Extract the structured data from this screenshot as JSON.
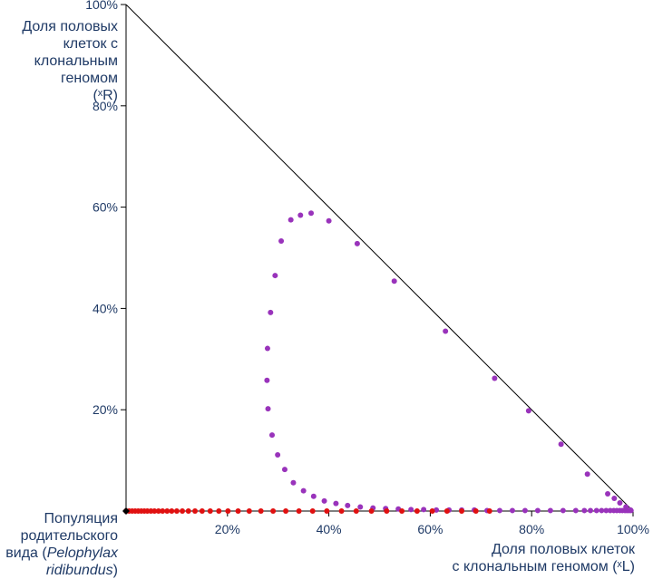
{
  "labels": {
    "y_axis": [
      "Доля половых",
      "клеток  с",
      "клональным",
      "геномом",
      "(ˣR)"
    ],
    "x_axis": [
      "Доля половых клеток",
      "с клональным геномом (ˣL)"
    ],
    "origin": [
      "Популяция",
      "родительского",
      "вида (",
      "Pelophylax",
      "ridibundus",
      ")"
    ]
  },
  "chart_data": {
    "type": "scatter",
    "xlim": [
      0,
      100
    ],
    "ylim": [
      0,
      100
    ],
    "x_ticks": [
      "20%",
      "40%",
      "60%",
      "80%",
      "100%"
    ],
    "y_ticks": [
      "20%",
      "40%",
      "60%",
      "80%",
      "100%"
    ],
    "diagonal_line": [
      [
        0,
        100
      ],
      [
        100,
        0
      ]
    ],
    "grid": false,
    "series": [
      {
        "color": "#9933bb",
        "points": [
          [
            36.5,
            58.8
          ],
          [
            34.4,
            58.4
          ],
          [
            32.5,
            57.5
          ],
          [
            30.6,
            53.3
          ],
          [
            29.4,
            46.5
          ],
          [
            28.5,
            39.2
          ],
          [
            27.9,
            32.1
          ],
          [
            27.8,
            25.8
          ],
          [
            28.0,
            20.2
          ],
          [
            28.8,
            15.0
          ],
          [
            29.9,
            11.1
          ],
          [
            31.3,
            8.2
          ],
          [
            33.0,
            5.6
          ],
          [
            35.0,
            4.0
          ],
          [
            37.0,
            2.9
          ],
          [
            39.1,
            2.0
          ],
          [
            41.4,
            1.5
          ],
          [
            43.7,
            1.1
          ],
          [
            46.2,
            0.8
          ],
          [
            48.7,
            0.6
          ],
          [
            51.2,
            0.5
          ],
          [
            53.7,
            0.4
          ],
          [
            56.2,
            0.3
          ],
          [
            58.7,
            0.3
          ],
          [
            61.2,
            0.2
          ],
          [
            63.7,
            0.2
          ],
          [
            66.2,
            0.2
          ],
          [
            68.7,
            0.2
          ],
          [
            71.2,
            0.1
          ],
          [
            73.7,
            0.1
          ],
          [
            76.2,
            0.1
          ],
          [
            78.7,
            0.1
          ],
          [
            81.2,
            0.1
          ],
          [
            83.7,
            0.1
          ],
          [
            86.2,
            0.1
          ],
          [
            88.7,
            0.1
          ],
          [
            90.4,
            0.1
          ],
          [
            91.6,
            0.1
          ],
          [
            92.8,
            0.1
          ],
          [
            93.8,
            0.1
          ],
          [
            94.7,
            0.1
          ],
          [
            95.5,
            0.1
          ],
          [
            96.2,
            0.1
          ],
          [
            96.8,
            0.1
          ],
          [
            97.4,
            0.1
          ],
          [
            97.9,
            0.1
          ],
          [
            98.4,
            0.1
          ],
          [
            98.8,
            0.1
          ],
          [
            99.2,
            0.1
          ],
          [
            99.6,
            0.1
          ],
          [
            40.0,
            57.3
          ],
          [
            45.6,
            52.8
          ],
          [
            52.9,
            45.4
          ],
          [
            63.0,
            35.5
          ],
          [
            72.7,
            26.2
          ],
          [
            79.4,
            19.8
          ],
          [
            85.8,
            13.2
          ],
          [
            91.0,
            7.3
          ],
          [
            95.0,
            3.4
          ],
          [
            96.3,
            2.5
          ],
          [
            97.4,
            1.6
          ],
          [
            98.6,
            0.8
          ],
          [
            99.5,
            0.2
          ]
        ]
      },
      {
        "color": "#e01010",
        "points": [
          [
            0,
            0
          ],
          [
            0.6,
            0
          ],
          [
            1.2,
            0
          ],
          [
            1.8,
            0
          ],
          [
            2.4,
            0
          ],
          [
            3.0,
            0
          ],
          [
            3.6,
            0
          ],
          [
            4.2,
            0
          ],
          [
            4.9,
            0
          ],
          [
            5.6,
            0
          ],
          [
            6.4,
            0
          ],
          [
            7.2,
            0
          ],
          [
            8.1,
            0
          ],
          [
            9.0,
            0
          ],
          [
            10.0,
            0
          ],
          [
            11.1,
            0
          ],
          [
            12.3,
            0
          ],
          [
            13.6,
            0
          ],
          [
            15.0,
            0
          ],
          [
            16.6,
            0
          ],
          [
            18.3,
            0
          ],
          [
            20.1,
            0
          ],
          [
            22.1,
            0
          ],
          [
            24.3,
            0
          ],
          [
            26.6,
            0
          ],
          [
            29.0,
            0
          ],
          [
            31.5,
            0
          ],
          [
            34.1,
            0
          ],
          [
            36.8,
            0
          ],
          [
            39.6,
            0
          ],
          [
            42.5,
            0
          ],
          [
            45.4,
            0
          ],
          [
            48.4,
            0
          ],
          [
            51.4,
            0
          ],
          [
            54.4,
            0
          ],
          [
            57.4,
            0
          ],
          [
            60.4,
            0
          ],
          [
            63.3,
            0
          ],
          [
            66.2,
            0
          ],
          [
            69.0,
            0
          ],
          [
            71.7,
            0
          ]
        ]
      }
    ]
  }
}
